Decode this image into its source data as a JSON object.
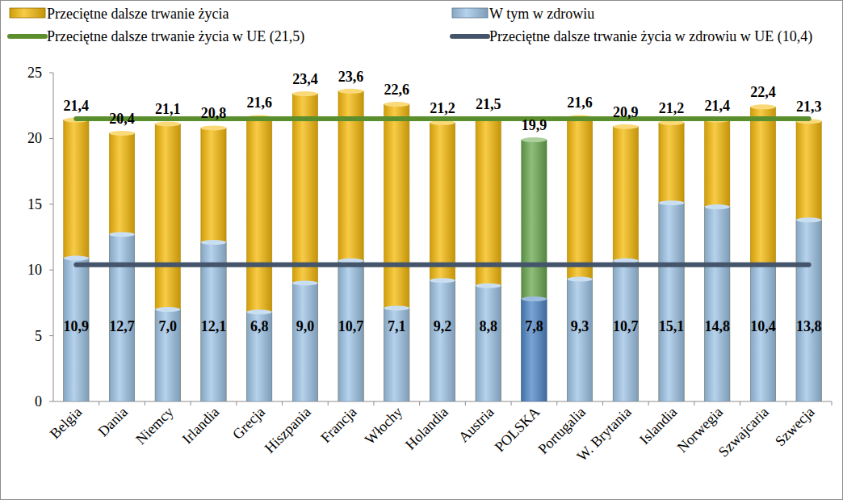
{
  "chart_data": {
    "type": "bar",
    "stacked": false,
    "grid": false,
    "legend": "top",
    "data_labels": true,
    "categories": [
      "Belgia",
      "Dania",
      "Niemcy",
      "Irlandia",
      "Grecja",
      "Hiszpania",
      "Francja",
      "Włochy",
      "Holandia",
      "Austria",
      "POLSKA",
      "Portugalia",
      "W. Brytania",
      "Islandia",
      "Norwegia",
      "Szwajcaria",
      "Szwecja"
    ],
    "ylim": [
      0,
      25
    ],
    "yticks": [
      0,
      5,
      10,
      15,
      20,
      25
    ],
    "series": [
      {
        "name": "Przeciętne dalsze trwanie życia",
        "type": "bar",
        "color": "#f5b90a",
        "colors": [
          "#f5b90a",
          "#f5b90a",
          "#f5b90a",
          "#f5b90a",
          "#f5b90a",
          "#f5b90a",
          "#f5b90a",
          "#f5b90a",
          "#f5b90a",
          "#f5b90a",
          "#6aa84f",
          "#f5b90a",
          "#f5b90a",
          "#f5b90a",
          "#f5b90a",
          "#f5b90a",
          "#f5b90a"
        ],
        "values": [
          21.4,
          20.4,
          21.1,
          20.8,
          21.6,
          23.4,
          23.6,
          22.6,
          21.2,
          21.5,
          19.9,
          21.6,
          20.9,
          21.2,
          21.4,
          22.4,
          21.3
        ],
        "value_labels": [
          "21,4",
          "20,4",
          "21,1",
          "20,8",
          "21,6",
          "23,4",
          "23,6",
          "22,6",
          "21,2",
          "21,5",
          "19,9",
          "21,6",
          "20,9",
          "21,2",
          "21,4",
          "22,4",
          "21,3"
        ]
      },
      {
        "name": "W tym w zdrowiu",
        "type": "bar",
        "color": "#9dc3e6",
        "colors": [
          "#9dc3e6",
          "#9dc3e6",
          "#9dc3e6",
          "#9dc3e6",
          "#9dc3e6",
          "#9dc3e6",
          "#9dc3e6",
          "#9dc3e6",
          "#9dc3e6",
          "#9dc3e6",
          "#4f86c6",
          "#9dc3e6",
          "#9dc3e6",
          "#9dc3e6",
          "#9dc3e6",
          "#9dc3e6",
          "#9dc3e6"
        ],
        "values": [
          10.9,
          12.7,
          7.0,
          12.1,
          6.8,
          9.0,
          10.7,
          7.1,
          9.2,
          8.8,
          7.8,
          9.3,
          10.7,
          15.1,
          14.8,
          10.4,
          13.8
        ],
        "value_labels": [
          "10,9",
          "12,7",
          "7,0",
          "12,1",
          "6,8",
          "9,0",
          "10,7",
          "7,1",
          "9,2",
          "8,8",
          "7,8",
          "9,3",
          "10,7",
          "15,1",
          "14,8",
          "10,4",
          "13,8"
        ]
      },
      {
        "name": "Przeciętne dalsze trwanie życia w UE (21,5)",
        "type": "line",
        "color": "#5b8f2e",
        "values": [
          21.5,
          21.5,
          21.5,
          21.5,
          21.5,
          21.5,
          21.5,
          21.5,
          21.5,
          21.5,
          21.5,
          21.5,
          21.5,
          21.5,
          21.5,
          21.5,
          21.5
        ]
      },
      {
        "name": "Przeciętne dalsze trwanie życia w zdrowiu w UE (10,4)",
        "type": "line",
        "color": "#44546a",
        "values": [
          10.4,
          10.4,
          10.4,
          10.4,
          10.4,
          10.4,
          10.4,
          10.4,
          10.4,
          10.4,
          10.4,
          10.4,
          10.4,
          10.4,
          10.4,
          10.4,
          10.4
        ]
      }
    ]
  }
}
